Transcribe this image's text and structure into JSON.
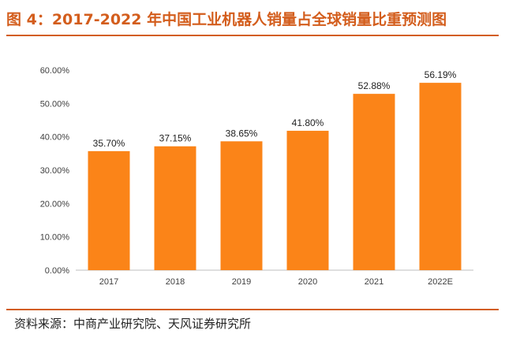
{
  "title": "图 4：2017-2022 年中国工业机器人销量占全球销量比重预测图",
  "source": "资料来源：中商产业研究院、天风证券研究所",
  "colors": {
    "accent": "#d35d1c",
    "bar": "#fb8418"
  },
  "chart_data": {
    "type": "bar",
    "title": "图 4：2017-2022 年中国工业机器人销量占全球销量比重预测图",
    "categories": [
      "2017",
      "2018",
      "2019",
      "2020",
      "2021",
      "2022E"
    ],
    "values": [
      35.7,
      37.15,
      38.65,
      41.8,
      52.88,
      56.19
    ],
    "data_labels": [
      "35.70%",
      "37.15%",
      "38.65%",
      "41.80%",
      "52.88%",
      "56.19%"
    ],
    "yticks": [
      "0.00%",
      "10.00%",
      "20.00%",
      "30.00%",
      "40.00%",
      "50.00%",
      "60.00%"
    ],
    "ylim": [
      0,
      60
    ],
    "xlabel": "",
    "ylabel": "",
    "grid": false,
    "legend": "none"
  }
}
